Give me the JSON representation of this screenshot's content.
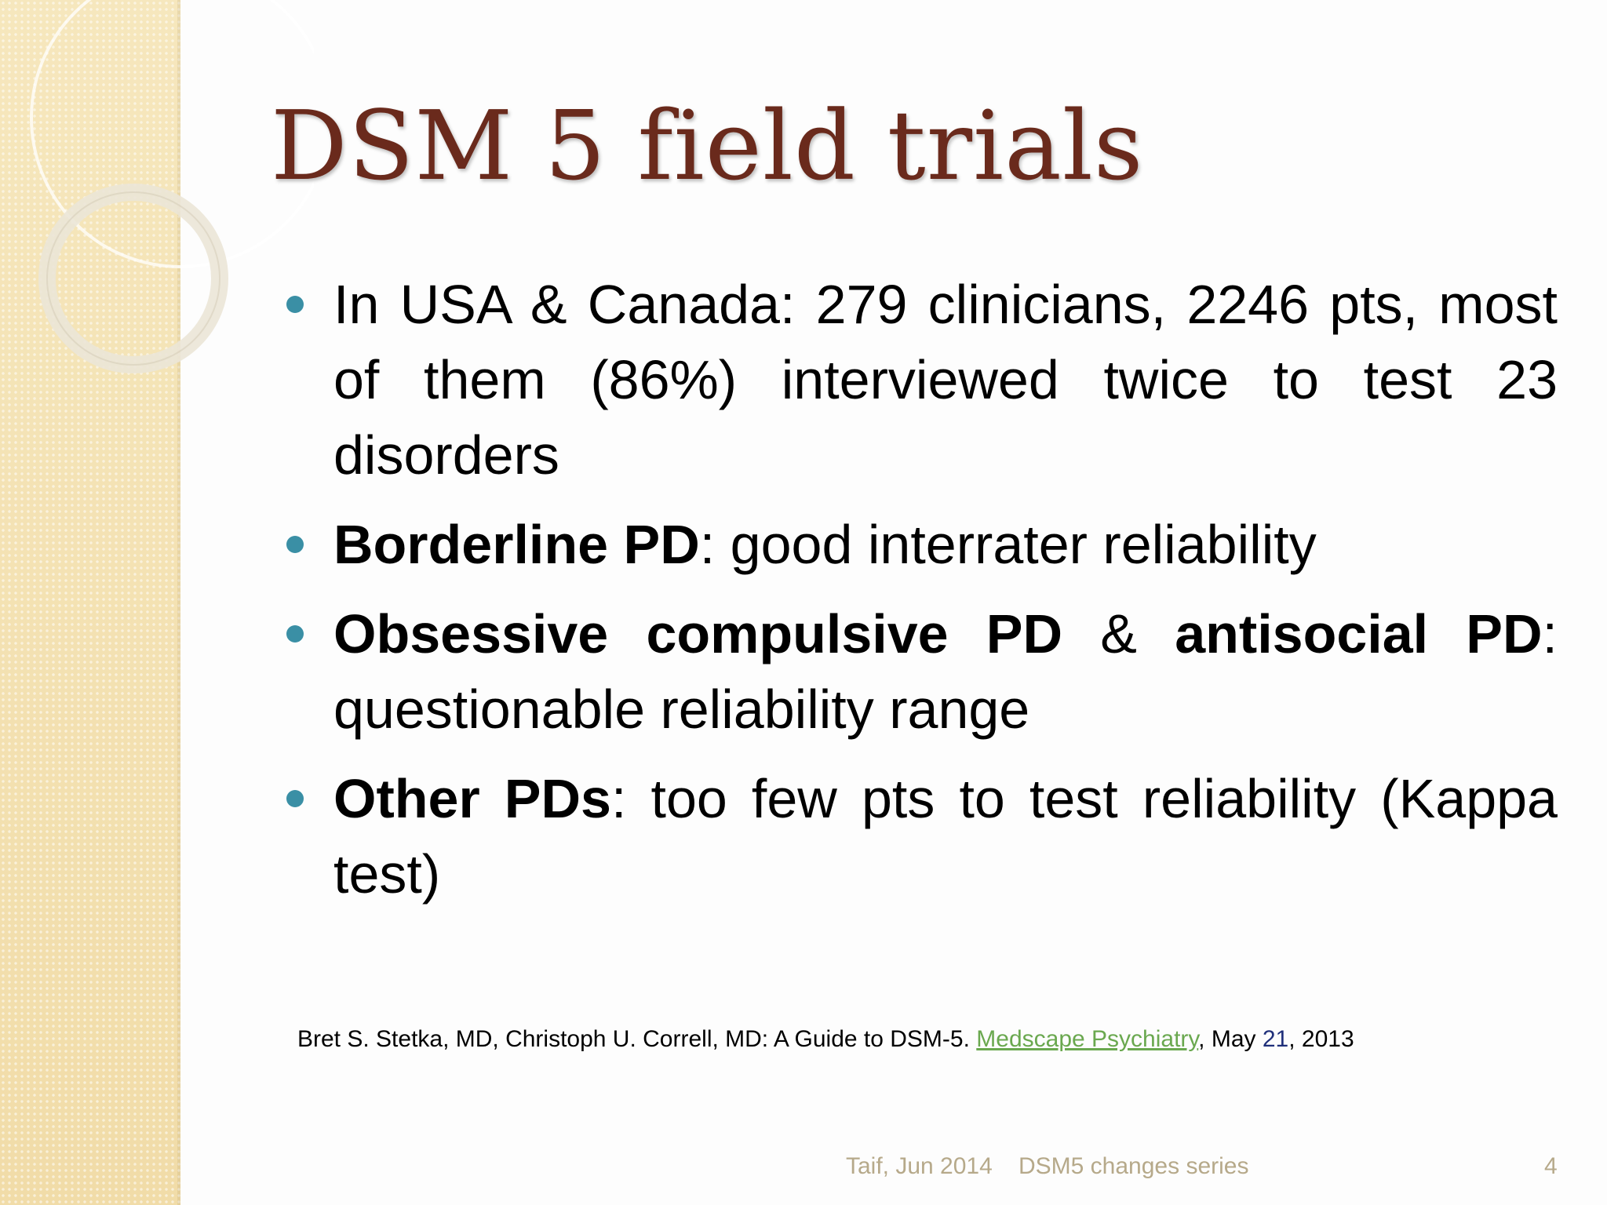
{
  "slide": {
    "title": "DSM 5 field trials",
    "bullets": [
      {
        "bold": "",
        "text": "In USA & Canada: 279 clinicians, 2246 pts, most of them (86%) interviewed twice to test 23 disorders"
      },
      {
        "bold": "Borderline PD",
        "text": ": good interrater reliability"
      },
      {
        "bold_1": "Obsessive compulsive PD",
        "mid": " & ",
        "bold_2": "antisocial PD",
        "text": ": questionable reliability range"
      },
      {
        "bold": "Other PDs",
        "text": ": too few pts to test reliability (Kappa test)"
      }
    ],
    "reference": {
      "prefix": "Bret S. Stetka, MD, Christoph U. Correll, MD: A Guide to DSM-5.",
      "link": "Medscape Psychiatry",
      "after_link": ",  May ",
      "day": "21",
      "year": ", 2013"
    },
    "footer": {
      "left": "Taif, Jun 2014",
      "middle": "DSM5 changes series",
      "page_number": "4"
    }
  },
  "colors": {
    "title": "#6a2a1c",
    "bullet_dot": "#3a8fa5",
    "link": "#6aa84f",
    "footer": "#b6a98a",
    "sidebar": "#f3e2b5"
  }
}
